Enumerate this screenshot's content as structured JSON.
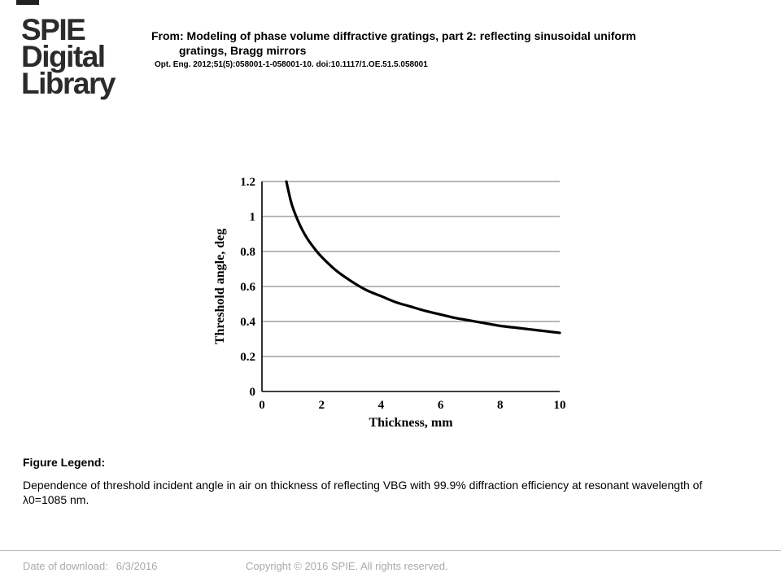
{
  "logo": {
    "lines": [
      "SPIE",
      "Digital",
      "Library"
    ]
  },
  "header": {
    "from_line1": "From: Modeling of phase volume diffractive gratings, part 2: reflecting sinusoidal uniform",
    "from_line2": "gratings, Bragg mirrors",
    "citation": "Opt. Eng. 2012;51(5):058001-1-058001-10. doi:10.1117/1.OE.51.5.058001"
  },
  "chart_data": {
    "type": "line",
    "title": "",
    "xlabel": "Thickness, mm",
    "ylabel": "Threshold angle, deg",
    "xlim": [
      0,
      10
    ],
    "ylim": [
      0,
      1.2
    ],
    "x_ticks": [
      0,
      2,
      4,
      6,
      8,
      10
    ],
    "x_tick_labels": [
      "0",
      "2",
      "4",
      "6",
      "8",
      "10"
    ],
    "y_ticks": [
      0,
      0.2,
      0.4,
      0.6,
      0.8,
      1.0,
      1.2
    ],
    "y_tick_labels": [
      "0",
      "0.2",
      "0.4",
      "0.6",
      "0.8",
      "1",
      "1.2"
    ],
    "grid": "horizontal",
    "series": [
      {
        "name": "",
        "color": "#000000",
        "x": [
          0.82,
          1.0,
          1.25,
          1.5,
          1.75,
          2.0,
          2.5,
          3.0,
          3.5,
          4.0,
          4.5,
          5.0,
          5.5,
          6.0,
          6.5,
          7.0,
          7.5,
          8.0,
          8.5,
          9.0,
          9.5,
          10.0
        ],
        "y": [
          1.2,
          1.07,
          0.96,
          0.88,
          0.82,
          0.77,
          0.69,
          0.63,
          0.58,
          0.545,
          0.51,
          0.485,
          0.46,
          0.44,
          0.42,
          0.405,
          0.39,
          0.375,
          0.365,
          0.355,
          0.345,
          0.335
        ]
      }
    ]
  },
  "legend": {
    "heading": "Figure Legend:",
    "text": "Dependence of threshold incident angle in air on thickness of reflecting VBG with 99.9% diffraction efficiency at resonant wavelength of λ0=1085 nm."
  },
  "footer": {
    "date_label": "Date of download:",
    "date_value": "6/3/2016",
    "copyright": "Copyright © 2016 SPIE. All rights reserved."
  }
}
